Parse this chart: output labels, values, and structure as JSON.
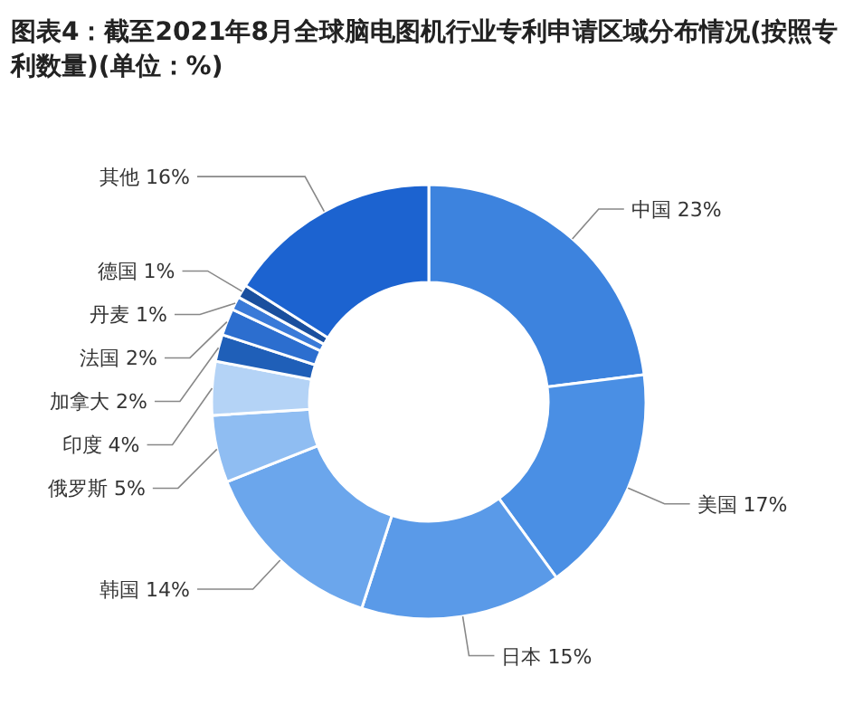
{
  "chart_data": {
    "type": "donut",
    "title": "图表4：截至2021年8月全球脑电图机行业专利申请区域分布情况(按照专利数量)(单位：%)",
    "categories": [
      "中国",
      "美国",
      "日本",
      "韩国",
      "俄罗斯",
      "印度",
      "加拿大",
      "法国",
      "丹麦",
      "德国",
      "其他"
    ],
    "values": [
      23,
      17,
      15,
      14,
      5,
      4,
      2,
      2,
      1,
      1,
      16
    ],
    "value_labels": [
      "23%",
      "17%",
      "15%",
      "14%",
      "5%",
      "4%",
      "2%",
      "2%",
      "1%",
      "1%",
      "16%"
    ],
    "colors": [
      "#3d83de",
      "#4a8fe4",
      "#5a9ae8",
      "#6ba6ec",
      "#8fbdf2",
      "#b4d3f6",
      "#1f5fb8",
      "#2c6ecf",
      "#3a7ad8",
      "#1a4f9e",
      "#1c63d0"
    ]
  }
}
